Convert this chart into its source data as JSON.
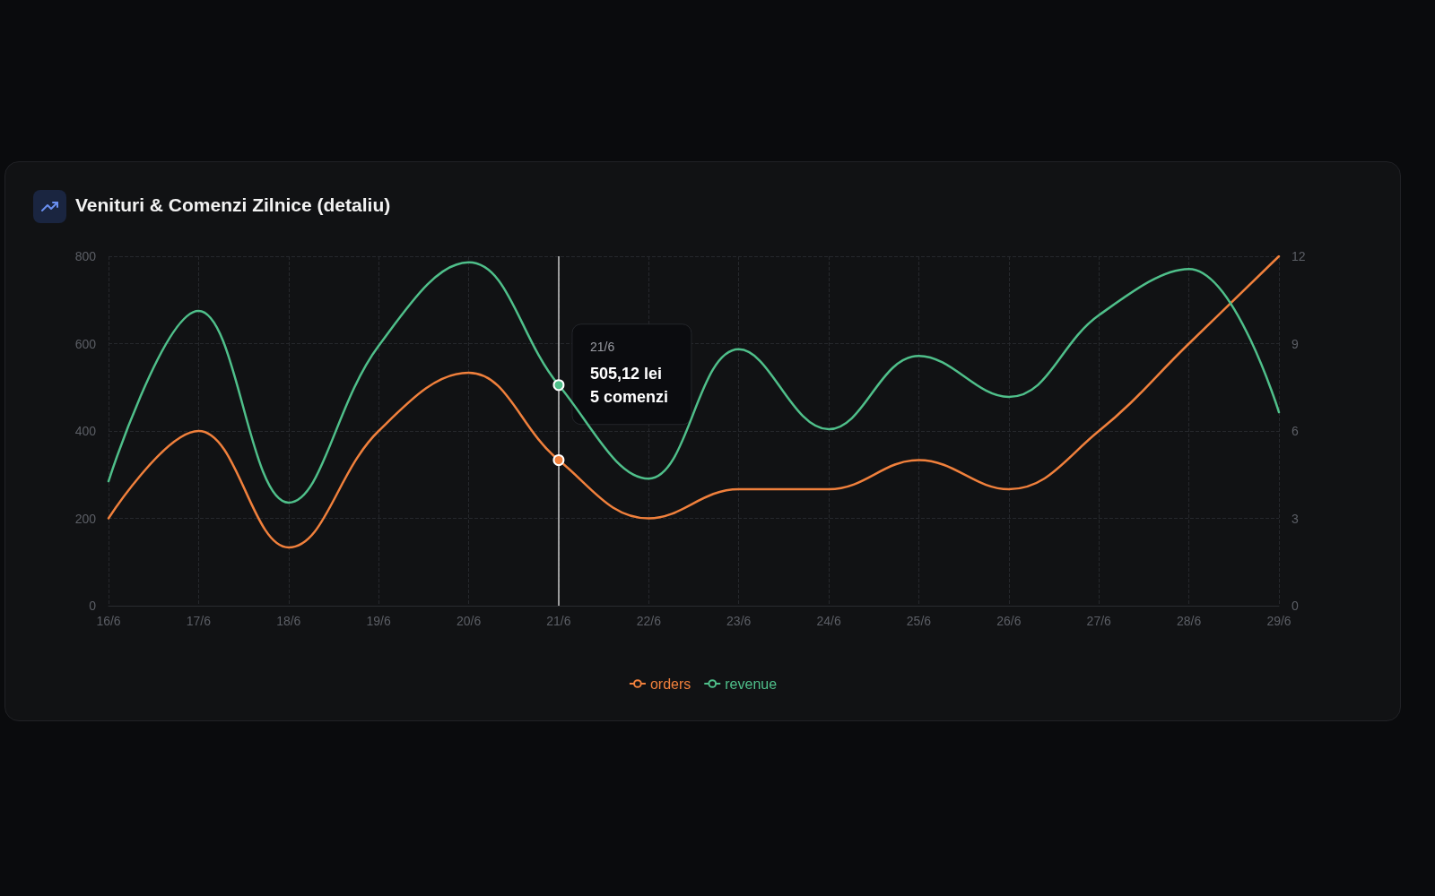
{
  "chart_data": {
    "type": "line",
    "title": "Venituri & Comenzi Zilnice (detaliu)",
    "categories": [
      "16/6",
      "17/6",
      "18/6",
      "19/6",
      "20/6",
      "21/6",
      "22/6",
      "23/6",
      "24/6",
      "25/6",
      "26/6",
      "27/6",
      "28/6",
      "29/6"
    ],
    "series": [
      {
        "name": "orders",
        "color": "#f0803c",
        "axis": "y2",
        "values": [
          3,
          6,
          2,
          6,
          8,
          5,
          3,
          4,
          4,
          5,
          4,
          6,
          9,
          12
        ]
      },
      {
        "name": "revenue",
        "color": "#4fbf8a",
        "values": [
          285,
          675,
          236,
          595,
          786,
          505.12,
          291,
          587,
          404,
          572,
          478,
          665,
          771,
          443
        ]
      }
    ],
    "ylim": [
      0,
      800
    ],
    "yticks": [
      0,
      200,
      400,
      600,
      800
    ],
    "y2lim": [
      0,
      12
    ],
    "y2ticks": [
      0,
      3,
      6,
      9,
      12
    ],
    "ref_lines": [
      {
        "axis": "x",
        "value": "21/6",
        "color": "#c8c8c8"
      }
    ],
    "annotations": [
      {
        "text": "21/6\n505,12 lei\n5 comenzi",
        "x": "21/6",
        "y": 505.12
      }
    ],
    "grid": true,
    "legend": "bottom"
  }
}
